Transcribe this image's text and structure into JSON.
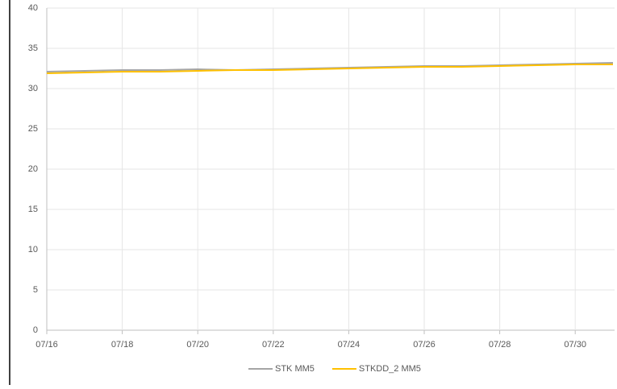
{
  "chart_data": {
    "type": "line",
    "categories": [
      "07/16",
      null,
      "07/18",
      null,
      "07/20",
      null,
      "07/22",
      null,
      "07/24",
      null,
      "07/26",
      null,
      "07/28",
      null,
      "07/30",
      null
    ],
    "series": [
      {
        "name": "STK MM5",
        "color": "#a5a5a5",
        "values": [
          32.1,
          32.2,
          32.3,
          32.3,
          32.4,
          32.3,
          32.4,
          32.5,
          32.6,
          32.7,
          32.8,
          32.8,
          32.9,
          33.0,
          33.1,
          33.2
        ]
      },
      {
        "name": "STKDD_2 MM5",
        "color": "#ffc000",
        "values": [
          31.9,
          32.0,
          32.1,
          32.1,
          32.2,
          32.3,
          32.3,
          32.4,
          32.5,
          32.6,
          32.7,
          32.7,
          32.8,
          32.9,
          33.0,
          33.0
        ]
      }
    ],
    "ylim": [
      0,
      40
    ],
    "yticks": [
      0,
      5,
      10,
      15,
      20,
      25,
      30,
      35,
      40
    ],
    "grid": true,
    "legend": "bottom"
  }
}
